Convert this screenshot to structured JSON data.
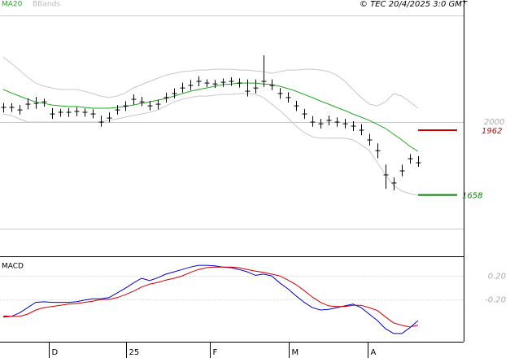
{
  "chart_data": {
    "type": "hlc",
    "source": "© TEC 20/4/2025 3:0 GMT",
    "x": [
      0,
      1,
      2,
      3,
      4,
      5,
      6,
      7,
      8,
      9,
      10,
      11,
      12,
      13,
      14,
      15,
      16,
      17,
      18,
      19,
      20,
      21,
      22,
      23,
      24,
      25,
      26,
      27,
      28,
      29,
      30,
      31,
      32,
      33,
      34,
      35,
      36,
      37,
      38,
      39,
      40,
      41,
      42,
      43,
      44,
      45,
      46,
      47,
      48,
      49,
      50,
      51
    ],
    "xlim": [
      -0.4,
      56.6
    ],
    "xticks": [
      {
        "value": 5.6,
        "label": "D"
      },
      {
        "value": 15.1,
        "label": "25"
      },
      {
        "value": 25.4,
        "label": "F"
      },
      {
        "value": 35.1,
        "label": "M"
      },
      {
        "value": 44.8,
        "label": "A"
      }
    ],
    "ylim": [
      1370,
      2573
    ],
    "yticks": [
      2000
    ],
    "gridlines": [
      1500,
      2000,
      2500
    ],
    "color": "#000000",
    "high": [
      2090,
      2088,
      2080,
      2112,
      2118,
      2110,
      2065,
      2062,
      2066,
      2070,
      2064,
      2060,
      2030,
      2045,
      2080,
      2098,
      2130,
      2118,
      2100,
      2105,
      2138,
      2158,
      2185,
      2198,
      2215,
      2200,
      2198,
      2205,
      2210,
      2205,
      2200,
      2200,
      2313,
      2200,
      2160,
      2140,
      2100,
      2062,
      2028,
      2015,
      2030,
      2022,
      2015,
      2004,
      1990,
      1945,
      1900,
      1800,
      1740,
      1800,
      1850,
      1840
    ],
    "low": [
      2045,
      2048,
      2035,
      2060,
      2062,
      2072,
      2015,
      2025,
      2024,
      2028,
      2025,
      2018,
      1978,
      1998,
      2035,
      2052,
      2082,
      2075,
      2055,
      2060,
      2092,
      2112,
      2138,
      2150,
      2168,
      2165,
      2160,
      2165,
      2170,
      2162,
      2120,
      2135,
      2165,
      2150,
      2110,
      2092,
      2052,
      2015,
      1978,
      1970,
      1985,
      1978,
      1970,
      1958,
      1938,
      1890,
      1830,
      1687,
      1680,
      1745,
      1805,
      1790
    ],
    "close": [
      2069,
      2069,
      2057,
      2084,
      2088,
      2095,
      2038,
      2046,
      2046,
      2050,
      2046,
      2038,
      2000,
      2019,
      2057,
      2076,
      2107,
      2095,
      2076,
      2084,
      2115,
      2134,
      2160,
      2172,
      2191,
      2183,
      2179,
      2187,
      2191,
      2183,
      2145,
      2160,
      2191,
      2172,
      2134,
      2115,
      2076,
      2038,
      2000,
      1992,
      2008,
      2000,
      1992,
      1981,
      1962,
      1916,
      1866,
      1752,
      1714,
      1771,
      1828,
      1809
    ],
    "ma": {
      "name": "MA20",
      "color": "#22aa22",
      "values": [
        2153,
        2137,
        2122,
        2107,
        2095,
        2088,
        2080,
        2076,
        2073,
        2073,
        2069,
        2065,
        2065,
        2065,
        2069,
        2073,
        2080,
        2088,
        2095,
        2103,
        2111,
        2122,
        2134,
        2145,
        2153,
        2160,
        2168,
        2176,
        2179,
        2183,
        2183,
        2183,
        2179,
        2176,
        2168,
        2157,
        2145,
        2130,
        2115,
        2099,
        2084,
        2069,
        2054,
        2038,
        2023,
        2008,
        1989,
        1970,
        1943,
        1916,
        1886,
        1863
      ]
    },
    "bands": {
      "name": "BBands",
      "color": "#c8c8c8",
      "upper": [
        2305,
        2275,
        2244,
        2210,
        2183,
        2168,
        2160,
        2153,
        2153,
        2153,
        2145,
        2134,
        2122,
        2115,
        2122,
        2137,
        2160,
        2176,
        2191,
        2206,
        2221,
        2229,
        2237,
        2240,
        2244,
        2244,
        2248,
        2248,
        2248,
        2244,
        2244,
        2240,
        2237,
        2229,
        2237,
        2244,
        2244,
        2248,
        2248,
        2244,
        2237,
        2221,
        2191,
        2153,
        2115,
        2084,
        2076,
        2095,
        2134,
        2122,
        2095,
        2065
      ],
      "lower": [
        2038,
        2031,
        2015,
        2000,
        2000,
        2000,
        2000,
        2000,
        2000,
        2000,
        2000,
        2000,
        2000,
        2008,
        2015,
        2023,
        2031,
        2038,
        2046,
        2057,
        2076,
        2095,
        2107,
        2115,
        2122,
        2122,
        2126,
        2130,
        2130,
        2134,
        2134,
        2130,
        2115,
        2084,
        2054,
        2019,
        1981,
        1950,
        1931,
        1924,
        1924,
        1924,
        1924,
        1916,
        1893,
        1866,
        1809,
        1752,
        1702,
        1676,
        1664,
        1656
      ]
    },
    "levels": [
      {
        "value": 1962,
        "color": "#cc0000"
      },
      {
        "value": 1658,
        "color": "#008800"
      }
    ],
    "macd": {
      "title": "MACD",
      "ylim": [
        -0.92,
        0.52
      ],
      "yticks": [
        {
          "value": 0.2,
          "label": "0.20"
        },
        {
          "value": -0.2,
          "label": "-0.20"
        }
      ],
      "series": [
        {
          "color": "#0000cc",
          "values": [
            -0.5,
            -0.49,
            -0.43,
            -0.34,
            -0.25,
            -0.24,
            -0.25,
            -0.25,
            -0.25,
            -0.24,
            -0.21,
            -0.19,
            -0.19,
            -0.17,
            -0.09,
            -0.01,
            0.08,
            0.16,
            0.12,
            0.17,
            0.23,
            0.27,
            0.31,
            0.35,
            0.38,
            0.38,
            0.37,
            0.35,
            0.34,
            0.31,
            0.27,
            0.21,
            0.23,
            0.2,
            0.08,
            -0.02,
            -0.14,
            -0.25,
            -0.34,
            -0.38,
            -0.37,
            -0.34,
            -0.31,
            -0.28,
            -0.34,
            -0.45,
            -0.56,
            -0.7,
            -0.78,
            -0.78,
            -0.68,
            -0.56
          ]
        },
        {
          "color": "#cc0000",
          "values": [
            -0.48,
            -0.49,
            -0.49,
            -0.45,
            -0.38,
            -0.34,
            -0.32,
            -0.3,
            -0.28,
            -0.27,
            -0.25,
            -0.23,
            -0.2,
            -0.2,
            -0.17,
            -0.12,
            -0.06,
            0.01,
            0.06,
            0.09,
            0.13,
            0.16,
            0.2,
            0.26,
            0.31,
            0.34,
            0.35,
            0.35,
            0.35,
            0.34,
            0.31,
            0.28,
            0.26,
            0.23,
            0.2,
            0.13,
            0.05,
            -0.05,
            -0.16,
            -0.25,
            -0.31,
            -0.32,
            -0.32,
            -0.3,
            -0.3,
            -0.34,
            -0.39,
            -0.5,
            -0.6,
            -0.64,
            -0.67,
            -0.64
          ]
        }
      ]
    }
  }
}
